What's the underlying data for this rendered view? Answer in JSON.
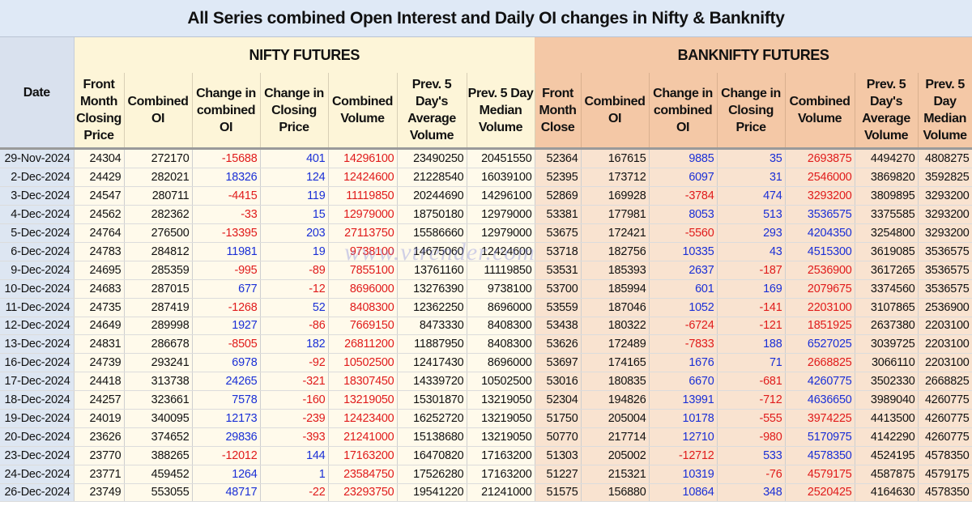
{
  "title": "All Series combined Open Interest and Daily OI changes in Nifty & Banknifty",
  "groups": {
    "date": "Date",
    "nifty": "NIFTY FUTURES",
    "bank": "BANKNIFTY FUTURES"
  },
  "nifty_headers": [
    "Front Month Closing Price",
    "Combined OI",
    "Change in combined OI",
    "Change in Closing Price",
    "Combined Volume",
    "Prev. 5 Day's Average Volume",
    "Prev. 5 Day Median Volume"
  ],
  "bank_headers": [
    "Front Month Close",
    "Combined OI",
    "Change in combined OI",
    "Change in Closing Price",
    "Combined Volume",
    "Prev. 5 Day's Average Volume",
    "Prev. 5 Day Median Volume"
  ],
  "watermark": "www.vtrender.com",
  "rows": [
    {
      "date": "29-Nov-2024",
      "n": [
        "24304",
        "272170",
        "-15688",
        "401",
        "14296100",
        "23490250",
        "20451550"
      ],
      "b": [
        "52364",
        "167615",
        "9885",
        "35",
        "2693875",
        "4494270",
        "4808275"
      ]
    },
    {
      "date": "2-Dec-2024",
      "n": [
        "24429",
        "282021",
        "18326",
        "124",
        "12424600",
        "21228540",
        "16039100"
      ],
      "b": [
        "52395",
        "173712",
        "6097",
        "31",
        "2546000",
        "3869820",
        "3592825"
      ]
    },
    {
      "date": "3-Dec-2024",
      "n": [
        "24547",
        "280711",
        "-4415",
        "119",
        "11119850",
        "20244690",
        "14296100"
      ],
      "b": [
        "52869",
        "169928",
        "-3784",
        "474",
        "3293200",
        "3809895",
        "3293200"
      ]
    },
    {
      "date": "4-Dec-2024",
      "n": [
        "24562",
        "282362",
        "-33",
        "15",
        "12979000",
        "18750180",
        "12979000"
      ],
      "b": [
        "53381",
        "177981",
        "8053",
        "513",
        "3536575",
        "3375585",
        "3293200"
      ]
    },
    {
      "date": "5-Dec-2024",
      "n": [
        "24764",
        "276500",
        "-13395",
        "203",
        "27113750",
        "15586660",
        "12979000"
      ],
      "b": [
        "53675",
        "172421",
        "-5560",
        "293",
        "4204350",
        "3254800",
        "3293200"
      ]
    },
    {
      "date": "6-Dec-2024",
      "n": [
        "24783",
        "284812",
        "11981",
        "19",
        "9738100",
        "14675060",
        "12424600"
      ],
      "b": [
        "53718",
        "182756",
        "10335",
        "43",
        "4515300",
        "3619085",
        "3536575"
      ]
    },
    {
      "date": "9-Dec-2024",
      "n": [
        "24695",
        "285359",
        "-995",
        "-89",
        "7855100",
        "13761160",
        "11119850"
      ],
      "b": [
        "53531",
        "185393",
        "2637",
        "-187",
        "2536900",
        "3617265",
        "3536575"
      ]
    },
    {
      "date": "10-Dec-2024",
      "n": [
        "24683",
        "287015",
        "677",
        "-12",
        "8696000",
        "13276390",
        "9738100"
      ],
      "b": [
        "53700",
        "185994",
        "601",
        "169",
        "2079675",
        "3374560",
        "3536575"
      ]
    },
    {
      "date": "11-Dec-2024",
      "n": [
        "24735",
        "287419",
        "-1268",
        "52",
        "8408300",
        "12362250",
        "8696000"
      ],
      "b": [
        "53559",
        "187046",
        "1052",
        "-141",
        "2203100",
        "3107865",
        "2536900"
      ]
    },
    {
      "date": "12-Dec-2024",
      "n": [
        "24649",
        "289998",
        "1927",
        "-86",
        "7669150",
        "8473330",
        "8408300"
      ],
      "b": [
        "53438",
        "180322",
        "-6724",
        "-121",
        "1851925",
        "2637380",
        "2203100"
      ]
    },
    {
      "date": "13-Dec-2024",
      "n": [
        "24831",
        "286678",
        "-8505",
        "182",
        "26811200",
        "11887950",
        "8408300"
      ],
      "b": [
        "53626",
        "172489",
        "-7833",
        "188",
        "6527025",
        "3039725",
        "2203100"
      ]
    },
    {
      "date": "16-Dec-2024",
      "n": [
        "24739",
        "293241",
        "6978",
        "-92",
        "10502500",
        "12417430",
        "8696000"
      ],
      "b": [
        "53697",
        "174165",
        "1676",
        "71",
        "2668825",
        "3066110",
        "2203100"
      ]
    },
    {
      "date": "17-Dec-2024",
      "n": [
        "24418",
        "313738",
        "24265",
        "-321",
        "18307450",
        "14339720",
        "10502500"
      ],
      "b": [
        "53016",
        "180835",
        "6670",
        "-681",
        "4260775",
        "3502330",
        "2668825"
      ]
    },
    {
      "date": "18-Dec-2024",
      "n": [
        "24257",
        "323661",
        "7578",
        "-160",
        "13219050",
        "15301870",
        "13219050"
      ],
      "b": [
        "52304",
        "194826",
        "13991",
        "-712",
        "4636650",
        "3989040",
        "4260775"
      ]
    },
    {
      "date": "19-Dec-2024",
      "n": [
        "24019",
        "340095",
        "12173",
        "-239",
        "12423400",
        "16252720",
        "13219050"
      ],
      "b": [
        "51750",
        "205004",
        "10178",
        "-555",
        "3974225",
        "4413500",
        "4260775"
      ]
    },
    {
      "date": "20-Dec-2024",
      "n": [
        "23626",
        "374652",
        "29836",
        "-393",
        "21241000",
        "15138680",
        "13219050"
      ],
      "b": [
        "50770",
        "217714",
        "12710",
        "-980",
        "5170975",
        "4142290",
        "4260775"
      ]
    },
    {
      "date": "23-Dec-2024",
      "n": [
        "23770",
        "388265",
        "-12012",
        "144",
        "17163200",
        "16470820",
        "17163200"
      ],
      "b": [
        "51303",
        "205002",
        "-12712",
        "533",
        "4578350",
        "4524195",
        "4578350"
      ]
    },
    {
      "date": "24-Dec-2024",
      "n": [
        "23771",
        "459452",
        "1264",
        "1",
        "23584750",
        "17526280",
        "17163200"
      ],
      "b": [
        "51227",
        "215321",
        "10319",
        "-76",
        "4579175",
        "4587875",
        "4579175"
      ]
    },
    {
      "date": "26-Dec-2024",
      "n": [
        "23749",
        "553055",
        "48717",
        "-22",
        "23293750",
        "19541220",
        "21241000"
      ],
      "b": [
        "51575",
        "156880",
        "10864",
        "348",
        "2520425",
        "4164630",
        "4578350"
      ]
    }
  ],
  "colors": {
    "negative": "#e01b1b",
    "positive": "#1a2fd6",
    "nifty_bg": "#fffaeb",
    "bank_bg": "#f9e3d0",
    "date_bg": "#dde6f2"
  }
}
